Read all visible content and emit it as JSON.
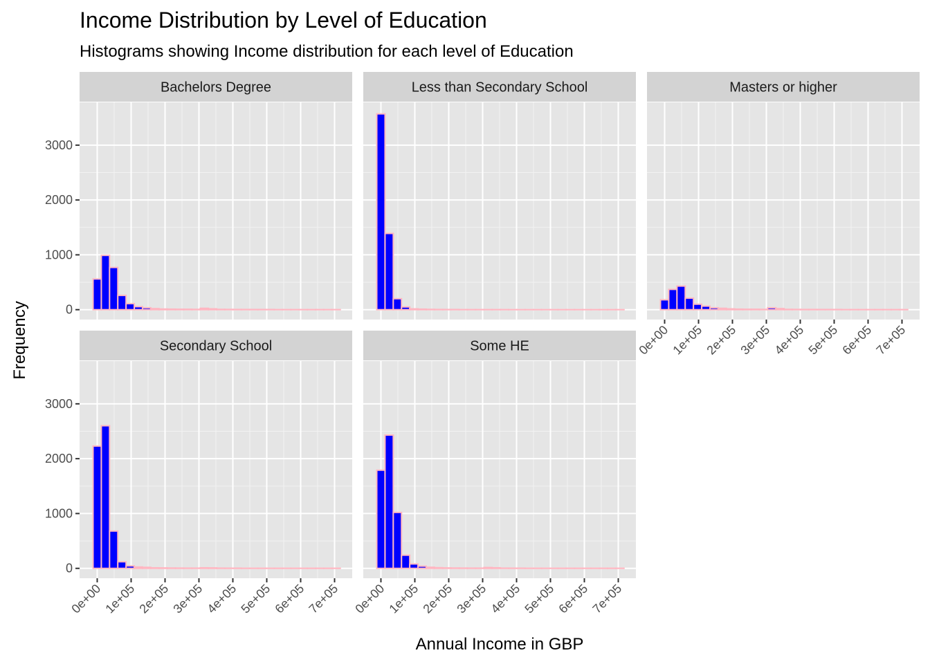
{
  "chart_data": {
    "type": "bar",
    "title": "Income Distribution by Level of Education",
    "subtitle": "Histograms showing Income distribution for each level of Education",
    "xlabel": "Annual Income in GBP",
    "ylabel": "Frequency",
    "x_ticks": [
      0,
      100000,
      200000,
      300000,
      400000,
      500000,
      600000,
      700000
    ],
    "x_tick_labels": [
      "0e+00",
      "1e+05",
      "2e+05",
      "3e+05",
      "4e+05",
      "5e+05",
      "6e+05",
      "7e+05"
    ],
    "y_ticks": [
      0,
      1000,
      2000,
      3000
    ],
    "y_tick_labels": [
      "0",
      "1000",
      "2000",
      "3000"
    ],
    "xlim": [
      -52000,
      752000
    ],
    "ylim": [
      -180,
      3780
    ],
    "bin_width": 24300,
    "bins_start": -12150,
    "grid": true,
    "bar_fill": "#0000ff",
    "bar_outline": "#ffb6c1",
    "panel_background": "#e5e5e5",
    "strip_background": "#d3d3d3",
    "facets": [
      {
        "name": "Bachelors Degree",
        "counts": [
          560,
          990,
          770,
          260,
          110,
          55,
          35,
          20,
          12,
          10,
          8,
          8,
          6,
          25,
          15,
          6,
          5,
          4,
          4,
          3,
          3,
          3,
          2,
          2,
          2,
          2,
          2,
          2,
          2,
          2
        ]
      },
      {
        "name": "Less than Secondary School",
        "counts": [
          3570,
          1390,
          200,
          50,
          15,
          10,
          6,
          4,
          3,
          3,
          2,
          2,
          2,
          2,
          2,
          2,
          1,
          1,
          1,
          1,
          1,
          1,
          1,
          1,
          1,
          1,
          1,
          1,
          1,
          1
        ]
      },
      {
        "name": "Masters or higher",
        "counts": [
          180,
          370,
          430,
          210,
          100,
          65,
          35,
          25,
          15,
          10,
          8,
          8,
          6,
          35,
          20,
          6,
          5,
          4,
          4,
          3,
          3,
          3,
          2,
          2,
          2,
          2,
          2,
          2,
          2,
          2
        ]
      },
      {
        "name": "Secondary School",
        "counts": [
          2230,
          2600,
          680,
          120,
          45,
          25,
          18,
          10,
          8,
          6,
          5,
          4,
          4,
          10,
          8,
          4,
          3,
          3,
          2,
          2,
          2,
          2,
          2,
          2,
          2,
          2,
          2,
          2,
          2,
          2
        ]
      },
      {
        "name": "Some HE",
        "counts": [
          1790,
          2430,
          1020,
          240,
          80,
          40,
          20,
          12,
          8,
          6,
          5,
          4,
          4,
          15,
          10,
          4,
          3,
          3,
          2,
          2,
          2,
          2,
          2,
          2,
          2,
          2,
          2,
          2,
          2,
          2
        ]
      }
    ]
  }
}
